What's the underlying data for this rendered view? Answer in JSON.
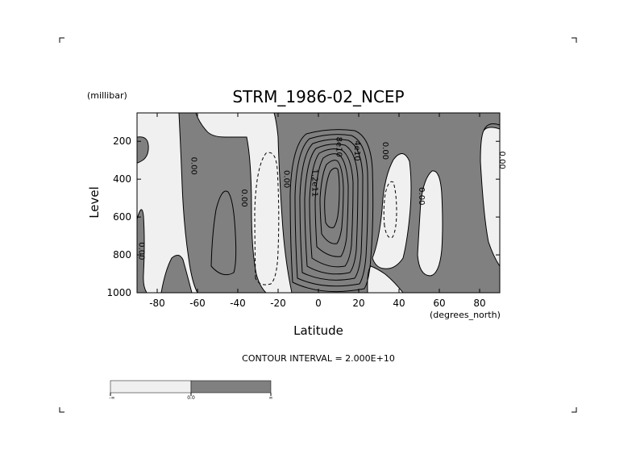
{
  "chart_data": {
    "type": "contour",
    "title": "STRM_1986-02_NCEP",
    "xlabel": "Latitude",
    "ylabel": "Level",
    "x_units": "(degrees_north)",
    "y_units": "(millibar)",
    "xlim": [
      -90,
      90
    ],
    "ylim": [
      1000,
      50
    ],
    "y_inverted": true,
    "x_ticks": [
      -80,
      -60,
      -40,
      -20,
      0,
      20,
      40,
      60,
      80
    ],
    "y_ticks": [
      200,
      400,
      600,
      800,
      1000
    ],
    "footer": "CONTOUR INTERVAL = 2.000E+10",
    "contour_interval": 20000000000,
    "contour_labels": [
      {
        "text": "0.00",
        "lat": -63,
        "lev": 330
      },
      {
        "text": "0.00",
        "lat": -38,
        "lev": 500
      },
      {
        "text": "0.00",
        "lat": -17,
        "lev": 400
      },
      {
        "text": "0.00",
        "lat": -89,
        "lev": 780
      },
      {
        "text": "8e10",
        "lat": 9,
        "lev": 230
      },
      {
        "text": "4e10",
        "lat": 18,
        "lev": 250
      },
      {
        "text": "1.2e11",
        "lat": -3,
        "lev": 420
      },
      {
        "text": "0.00",
        "lat": 32,
        "lev": 250
      },
      {
        "text": "0.00",
        "lat": 50,
        "lev": 490
      },
      {
        "text": "0.00",
        "lat": 90,
        "lev": 300
      }
    ],
    "colorbar": {
      "labels": [
        "-∞",
        "0.0",
        "∞"
      ],
      "colors": [
        "#f0f0f0",
        "#808080"
      ]
    },
    "shading": {
      "negative": "#f0f0f0",
      "positive": "#808080"
    }
  }
}
